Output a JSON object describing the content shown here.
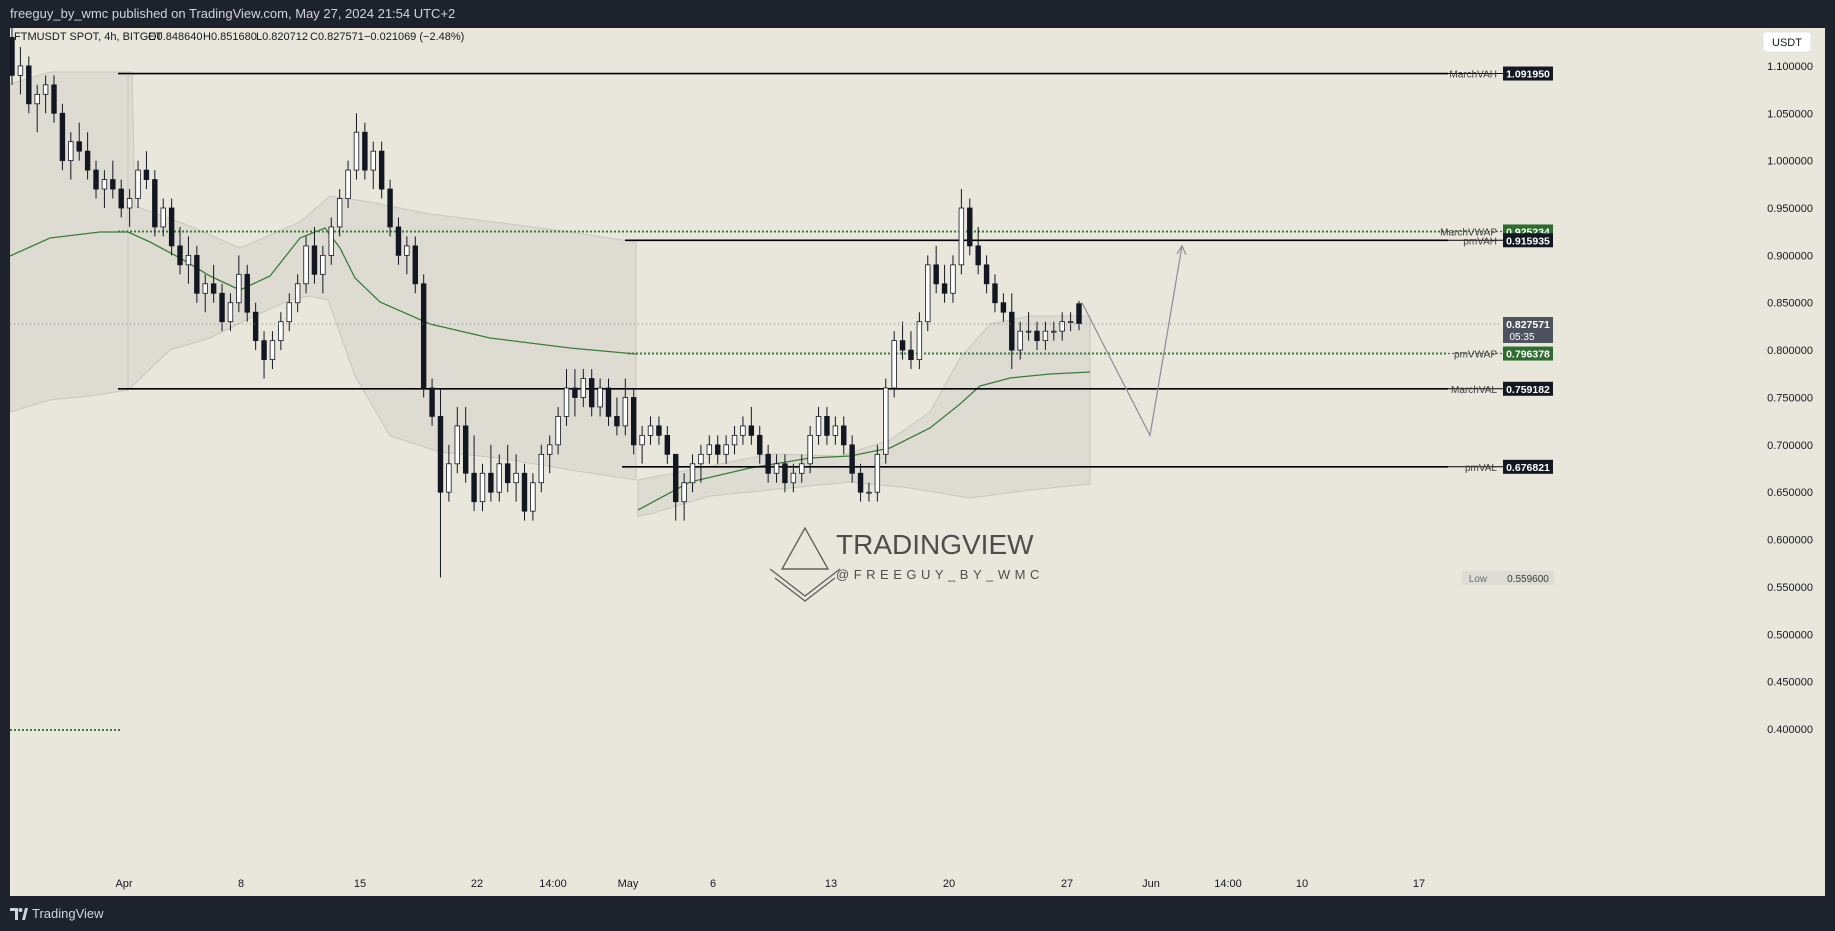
{
  "header": {
    "publisher_line": "freeguy_by_wmc published on TradingView.com, May 27, 2024 21:54 UTC+2"
  },
  "footer": {
    "brand": "TradingView"
  },
  "legend": {
    "symbol": "FTMUSDT SPOT, 4h, BITGET",
    "open": "O0.848640",
    "high": "H0.851680",
    "low": "L0.820712",
    "close": "C0.827571",
    "change": "−0.021069 (−2.48%)"
  },
  "currency_button": "USDT",
  "watermark": {
    "title": "TRADINGVIEW",
    "handle": "@FREEGUY_BY_WMC"
  },
  "colors": {
    "background": "#e9e7dc",
    "level_line": "#000000",
    "vwap": "#3a7d3a",
    "band": "#d9d7cc",
    "tag_green": "#2e6b2e",
    "tag_black": "#131722"
  },
  "chart_data": {
    "type": "candlestick",
    "symbol": "FTMUSDT",
    "timeframe": "4h",
    "exchange": "BITGET",
    "ylim": [
      0.38,
      1.14
    ],
    "y_ticks": [
      "1.100000",
      "1.050000",
      "1.000000",
      "0.950000",
      "0.900000",
      "0.850000",
      "0.800000",
      "0.750000",
      "0.700000",
      "0.650000",
      "0.600000",
      "0.550000",
      "0.500000",
      "0.450000",
      "0.400000"
    ],
    "x_ticks": [
      "Apr",
      "8",
      "15",
      "22",
      "14:00",
      "May",
      "6",
      "13",
      "20",
      "27",
      "Jun",
      "14:00",
      "10",
      "17"
    ],
    "current_price": "0.827571",
    "countdown": "05:35",
    "low_marker": {
      "label": "Low",
      "value": "0.559600"
    },
    "levels": [
      {
        "name": "MarchVAH",
        "value": "1.091950",
        "style": "solid",
        "tag": "black"
      },
      {
        "name": "MarchVWAP",
        "value": "0.925234",
        "style": "dotted",
        "tag": "green"
      },
      {
        "name": "pmVAH",
        "value": "0.915935",
        "style": "solid",
        "tag": "black"
      },
      {
        "name": "pmVWAP",
        "value": "0.796378",
        "style": "dotted",
        "tag": "green"
      },
      {
        "name": "MarchVAL",
        "value": "0.759182",
        "style": "solid",
        "tag": "black"
      },
      {
        "name": "pmVAL",
        "value": "0.676821",
        "style": "solid",
        "tag": "black"
      }
    ],
    "candles": [
      [
        1.13,
        1.14,
        1.08,
        1.09
      ],
      [
        1.09,
        1.12,
        1.07,
        1.1
      ],
      [
        1.1,
        1.11,
        1.05,
        1.06
      ],
      [
        1.06,
        1.08,
        1.03,
        1.07
      ],
      [
        1.07,
        1.09,
        1.05,
        1.08
      ],
      [
        1.08,
        1.09,
        1.04,
        1.05
      ],
      [
        1.05,
        1.06,
        0.99,
        1.0
      ],
      [
        1.0,
        1.03,
        0.98,
        1.02
      ],
      [
        1.02,
        1.04,
        1.0,
        1.01
      ],
      [
        1.01,
        1.03,
        0.98,
        0.99
      ],
      [
        0.99,
        1.0,
        0.96,
        0.97
      ],
      [
        0.97,
        0.99,
        0.95,
        0.98
      ],
      [
        0.98,
        1.0,
        0.96,
        0.97
      ],
      [
        0.97,
        0.98,
        0.94,
        0.95
      ],
      [
        0.95,
        0.97,
        0.93,
        0.96
      ],
      [
        0.96,
        1.0,
        0.95,
        0.99
      ],
      [
        0.99,
        1.01,
        0.97,
        0.98
      ],
      [
        0.98,
        0.99,
        0.92,
        0.93
      ],
      [
        0.93,
        0.96,
        0.92,
        0.95
      ],
      [
        0.95,
        0.96,
        0.9,
        0.91
      ],
      [
        0.91,
        0.93,
        0.88,
        0.89
      ],
      [
        0.89,
        0.92,
        0.87,
        0.9
      ],
      [
        0.9,
        0.91,
        0.85,
        0.86
      ],
      [
        0.86,
        0.88,
        0.84,
        0.87
      ],
      [
        0.87,
        0.89,
        0.85,
        0.86
      ],
      [
        0.86,
        0.87,
        0.82,
        0.83
      ],
      [
        0.83,
        0.86,
        0.82,
        0.85
      ],
      [
        0.85,
        0.9,
        0.84,
        0.88
      ],
      [
        0.88,
        0.89,
        0.83,
        0.84
      ],
      [
        0.84,
        0.85,
        0.8,
        0.81
      ],
      [
        0.81,
        0.82,
        0.77,
        0.79
      ],
      [
        0.79,
        0.82,
        0.78,
        0.81
      ],
      [
        0.81,
        0.84,
        0.8,
        0.83
      ],
      [
        0.83,
        0.86,
        0.82,
        0.85
      ],
      [
        0.85,
        0.88,
        0.84,
        0.87
      ],
      [
        0.87,
        0.92,
        0.86,
        0.91
      ],
      [
        0.91,
        0.93,
        0.87,
        0.88
      ],
      [
        0.88,
        0.91,
        0.86,
        0.9
      ],
      [
        0.9,
        0.94,
        0.89,
        0.93
      ],
      [
        0.93,
        0.97,
        0.92,
        0.96
      ],
      [
        0.96,
        1.0,
        0.95,
        0.99
      ],
      [
        0.99,
        1.05,
        0.98,
        1.03
      ],
      [
        1.03,
        1.04,
        0.98,
        0.99
      ],
      [
        0.99,
        1.02,
        0.97,
        1.01
      ],
      [
        1.01,
        1.02,
        0.96,
        0.97
      ],
      [
        0.97,
        0.98,
        0.92,
        0.93
      ],
      [
        0.93,
        0.94,
        0.89,
        0.9
      ],
      [
        0.9,
        0.92,
        0.88,
        0.91
      ],
      [
        0.91,
        0.92,
        0.86,
        0.87
      ],
      [
        0.87,
        0.88,
        0.75,
        0.76
      ],
      [
        0.76,
        0.77,
        0.72,
        0.73
      ],
      [
        0.73,
        0.76,
        0.56,
        0.65
      ],
      [
        0.65,
        0.7,
        0.64,
        0.68
      ],
      [
        0.68,
        0.74,
        0.67,
        0.72
      ],
      [
        0.72,
        0.74,
        0.66,
        0.67
      ],
      [
        0.67,
        0.71,
        0.63,
        0.64
      ],
      [
        0.64,
        0.68,
        0.63,
        0.67
      ],
      [
        0.67,
        0.7,
        0.64,
        0.65
      ],
      [
        0.65,
        0.69,
        0.64,
        0.68
      ],
      [
        0.68,
        0.7,
        0.65,
        0.66
      ],
      [
        0.66,
        0.69,
        0.64,
        0.67
      ],
      [
        0.67,
        0.68,
        0.62,
        0.63
      ],
      [
        0.63,
        0.67,
        0.62,
        0.66
      ],
      [
        0.66,
        0.7,
        0.65,
        0.69
      ],
      [
        0.69,
        0.71,
        0.67,
        0.7
      ],
      [
        0.7,
        0.74,
        0.69,
        0.73
      ],
      [
        0.73,
        0.78,
        0.72,
        0.76
      ],
      [
        0.76,
        0.78,
        0.73,
        0.75
      ],
      [
        0.75,
        0.78,
        0.74,
        0.77
      ],
      [
        0.77,
        0.78,
        0.73,
        0.74
      ],
      [
        0.74,
        0.77,
        0.73,
        0.76
      ],
      [
        0.76,
        0.77,
        0.72,
        0.73
      ],
      [
        0.73,
        0.75,
        0.71,
        0.72
      ],
      [
        0.72,
        0.77,
        0.71,
        0.75
      ],
      [
        0.75,
        0.76,
        0.69,
        0.7
      ],
      [
        0.7,
        0.72,
        0.68,
        0.71
      ],
      [
        0.71,
        0.73,
        0.7,
        0.72
      ],
      [
        0.72,
        0.73,
        0.7,
        0.71
      ],
      [
        0.71,
        0.72,
        0.68,
        0.69
      ],
      [
        0.69,
        0.69,
        0.62,
        0.64
      ],
      [
        0.64,
        0.67,
        0.62,
        0.66
      ],
      [
        0.66,
        0.69,
        0.65,
        0.68
      ],
      [
        0.68,
        0.7,
        0.66,
        0.69
      ],
      [
        0.69,
        0.71,
        0.68,
        0.7
      ],
      [
        0.7,
        0.71,
        0.68,
        0.69
      ],
      [
        0.69,
        0.71,
        0.68,
        0.7
      ],
      [
        0.7,
        0.72,
        0.69,
        0.71
      ],
      [
        0.71,
        0.73,
        0.7,
        0.72
      ],
      [
        0.72,
        0.74,
        0.7,
        0.71
      ],
      [
        0.71,
        0.72,
        0.68,
        0.69
      ],
      [
        0.69,
        0.7,
        0.66,
        0.67
      ],
      [
        0.67,
        0.69,
        0.66,
        0.68
      ],
      [
        0.68,
        0.69,
        0.65,
        0.66
      ],
      [
        0.66,
        0.68,
        0.65,
        0.67
      ],
      [
        0.67,
        0.69,
        0.66,
        0.68
      ],
      [
        0.68,
        0.72,
        0.67,
        0.71
      ],
      [
        0.71,
        0.74,
        0.7,
        0.73
      ],
      [
        0.73,
        0.74,
        0.7,
        0.71
      ],
      [
        0.71,
        0.73,
        0.7,
        0.72
      ],
      [
        0.72,
        0.73,
        0.69,
        0.7
      ],
      [
        0.7,
        0.71,
        0.66,
        0.67
      ],
      [
        0.67,
        0.68,
        0.64,
        0.65
      ],
      [
        0.65,
        0.66,
        0.64,
        0.65
      ],
      [
        0.65,
        0.7,
        0.64,
        0.69
      ],
      [
        0.69,
        0.77,
        0.68,
        0.76
      ],
      [
        0.76,
        0.82,
        0.75,
        0.81
      ],
      [
        0.81,
        0.83,
        0.79,
        0.8
      ],
      [
        0.8,
        0.82,
        0.78,
        0.79
      ],
      [
        0.79,
        0.84,
        0.78,
        0.83
      ],
      [
        0.83,
        0.9,
        0.82,
        0.89
      ],
      [
        0.89,
        0.91,
        0.86,
        0.87
      ],
      [
        0.87,
        0.89,
        0.85,
        0.86
      ],
      [
        0.86,
        0.9,
        0.85,
        0.89
      ],
      [
        0.89,
        0.97,
        0.88,
        0.95
      ],
      [
        0.95,
        0.96,
        0.9,
        0.91
      ],
      [
        0.91,
        0.93,
        0.88,
        0.89
      ],
      [
        0.89,
        0.9,
        0.86,
        0.87
      ],
      [
        0.87,
        0.88,
        0.84,
        0.85
      ],
      [
        0.85,
        0.86,
        0.83,
        0.84
      ],
      [
        0.84,
        0.86,
        0.78,
        0.8
      ],
      [
        0.8,
        0.83,
        0.79,
        0.82
      ],
      [
        0.82,
        0.84,
        0.81,
        0.82
      ],
      [
        0.82,
        0.83,
        0.8,
        0.81
      ],
      [
        0.81,
        0.83,
        0.8,
        0.82
      ],
      [
        0.82,
        0.83,
        0.81,
        0.82
      ],
      [
        0.82,
        0.84,
        0.81,
        0.83
      ],
      [
        0.83,
        0.84,
        0.82,
        0.83
      ],
      [
        0.849,
        0.852,
        0.821,
        0.828
      ]
    ],
    "projection": [
      {
        "time": "May 27",
        "price": 0.85
      },
      {
        "time": "Jun",
        "price": 0.71
      },
      {
        "time": "Jun",
        "price": 0.91
      }
    ]
  }
}
